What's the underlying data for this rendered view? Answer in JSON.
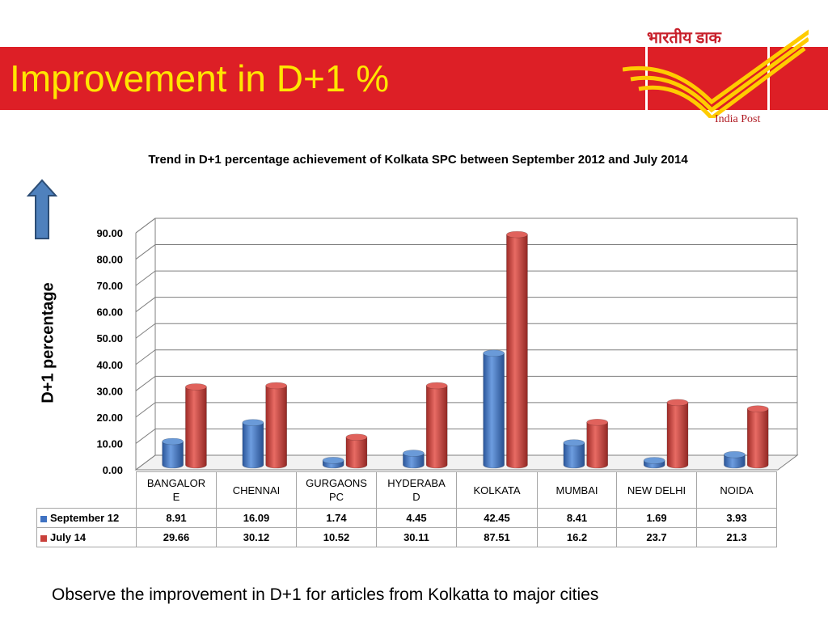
{
  "slide": {
    "title": "Improvement in D+1 %",
    "logo_hindi": "भारतीय डाक",
    "logo_english": "India Post",
    "footer": "Observe the improvement in D+1 for articles from Kolkatta to major cities",
    "banner_color": "#dd1f26",
    "title_color": "#ffe600"
  },
  "chart_data": {
    "type": "bar",
    "title": "Trend in D+1 percentage achievement of Kolkata SPC between September 2012 and July 2014",
    "xlabel": "",
    "ylabel": "D+1 percentage",
    "ylim": [
      0,
      90
    ],
    "yticks": [
      "0.00",
      "10.00",
      "20.00",
      "30.00",
      "40.00",
      "50.00",
      "60.00",
      "70.00",
      "80.00",
      "90.00"
    ],
    "grid": true,
    "legend": "data-table",
    "categories": [
      "BANGALORE",
      "CHENNAI",
      "GURGAONSPC",
      "HYDERABAD",
      "KOLKATA",
      "MUMBAI",
      "NEW DELHI",
      "NOIDA"
    ],
    "category_display": [
      "BANGALOR\nE",
      "CHENNAI",
      "GURGAONS\nPC",
      "HYDERABA\nD",
      "KOLKATA",
      "MUMBAI",
      "NEW DELHI",
      "NOIDA"
    ],
    "series": [
      {
        "name": "September 12",
        "color": "#3f72c2",
        "values": [
          8.91,
          16.09,
          1.74,
          4.45,
          42.45,
          8.41,
          1.69,
          3.93
        ],
        "labels": [
          "8.91",
          "16.09",
          "1.74",
          "4.45",
          "42.45",
          "8.41",
          "1.69",
          "3.93"
        ]
      },
      {
        "name": "July 14",
        "color": "#c9403b",
        "values": [
          29.66,
          30.12,
          10.52,
          30.11,
          87.51,
          16.2,
          23.7,
          21.3
        ],
        "labels": [
          "29.66",
          "30.12",
          "10.52",
          "30.11",
          "87.51",
          "16.2",
          "23.7",
          "21.3"
        ]
      }
    ]
  }
}
